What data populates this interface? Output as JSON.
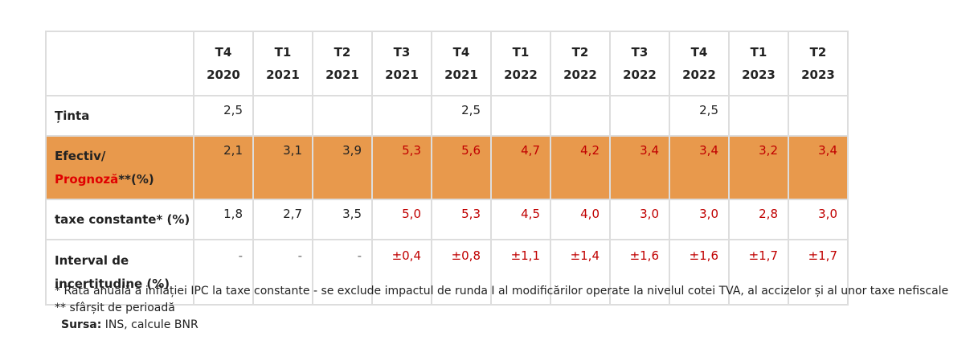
{
  "table": {
    "corner": "",
    "columns": [
      {
        "q": "T4",
        "year": "2020"
      },
      {
        "q": "T1",
        "year": "2021"
      },
      {
        "q": "T2",
        "year": "2021"
      },
      {
        "q": "T3",
        "year": "2021"
      },
      {
        "q": "T4",
        "year": "2021"
      },
      {
        "q": "T1",
        "year": "2022"
      },
      {
        "q": "T2",
        "year": "2022"
      },
      {
        "q": "T3",
        "year": "2022"
      },
      {
        "q": "T4",
        "year": "2022"
      },
      {
        "q": "T1",
        "year": "2023"
      },
      {
        "q": "T2",
        "year": "2023"
      }
    ],
    "rows": {
      "target": {
        "label": "Ținta",
        "values": [
          "2,5",
          "",
          "",
          "",
          "2,5",
          "",
          "",
          "",
          "2,5",
          "",
          ""
        ]
      },
      "actual": {
        "label_part1": "Efectiv/",
        "label_part2": "Prognoză",
        "label_part3": "**(%)",
        "values": [
          "2,1",
          "3,1",
          "3,9",
          "5,3",
          "5,6",
          "4,7",
          "4,2",
          "3,4",
          "3,4",
          "3,2",
          "3,4"
        ]
      },
      "constant_taxes": {
        "label": "taxe constante* (%)",
        "values": [
          "1,8",
          "2,7",
          "3,5",
          "5,0",
          "5,3",
          "4,5",
          "4,0",
          "3,0",
          "3,0",
          "2,8",
          "3,0"
        ]
      },
      "uncertainty": {
        "label_line1": "Interval de",
        "label_line2": "incertitudine (%)",
        "values": [
          "-",
          "-",
          "-",
          "±0,4",
          "±0,8",
          "±1,1",
          "±1,4",
          "±1,6",
          "±1,6",
          "±1,7",
          "±1,7"
        ]
      }
    }
  },
  "notes": {
    "note1": "* Rata anuală a inflației IPC la taxe constante - se exclude impactul de runda I al modificărilor operate la nivelul cotei TVA, al accizelor și al unor taxe nefiscale",
    "note2": "** sfârșit de perioadă",
    "source_label": "Sursa:",
    "source_text": " INS, calcule BNR"
  },
  "colors": {
    "highlight_row": "#e8994c",
    "projection_text": "#c00000",
    "forecast_label": "#e00000",
    "grid": "#dddddd"
  }
}
